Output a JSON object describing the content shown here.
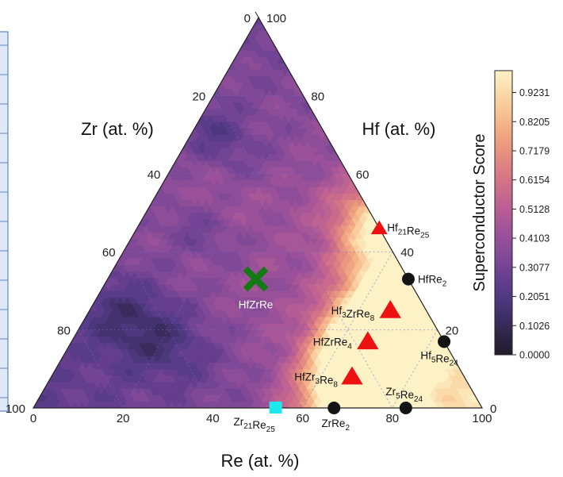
{
  "chart_data": {
    "type": "ternary-contour",
    "axes": {
      "a": {
        "label": "Zr (at. %)",
        "ticks": [
          0,
          20,
          40,
          60,
          80,
          100
        ]
      },
      "b": {
        "label": "Hf (at. %)",
        "ticks": [
          100,
          80,
          60,
          40,
          20,
          0
        ]
      },
      "c": {
        "label": "Re (at. %)",
        "ticks": [
          0,
          20,
          40,
          60,
          80,
          100
        ]
      }
    },
    "colorbar": {
      "label": "Superconductor Score",
      "range": [
        0,
        1
      ],
      "ticks": [
        "0.0000",
        "0.1026",
        "0.2051",
        "0.3077",
        "0.4103",
        "0.5128",
        "0.6154",
        "0.7179",
        "0.8205",
        "0.9231"
      ],
      "colors": [
        "#1f1c2b",
        "#2f2545",
        "#40306a",
        "#533a86",
        "#6b4191",
        "#844a98",
        "#9c5299",
        "#b45c95",
        "#c96a8c",
        "#d97b84",
        "#e8927f",
        "#f2aa82",
        "#f7c494",
        "#fbdcac",
        "#fdf1c6"
      ]
    },
    "markers": [
      {
        "label": "Hf21Re25",
        "hf": 46,
        "zr": 0,
        "re": 54,
        "shape": "triangle",
        "color": "#ee1111"
      },
      {
        "label": "HfRe2",
        "hf": 33,
        "zr": 0,
        "re": 67,
        "shape": "circle",
        "color": "#141414"
      },
      {
        "label": "Hf3ZrRe8",
        "hf": 25,
        "zr": 8,
        "re": 67,
        "shape": "triangle",
        "color": "#ee1111"
      },
      {
        "label": "HfZrRe4",
        "hf": 17,
        "zr": 17,
        "re": 66,
        "shape": "triangle",
        "color": "#ee1111"
      },
      {
        "label": "Hf5Re24",
        "hf": 17,
        "zr": 0,
        "re": 83,
        "shape": "circle",
        "color": "#141414"
      },
      {
        "label": "HfZr3Re8",
        "hf": 8,
        "zr": 25,
        "re": 67,
        "shape": "triangle",
        "color": "#ee1111"
      },
      {
        "label": "Zr5Re24",
        "hf": 0,
        "zr": 17,
        "re": 83,
        "shape": "circle",
        "color": "#141414"
      },
      {
        "label": "ZrRe2",
        "hf": 0,
        "zr": 33,
        "re": 67,
        "shape": "circle",
        "color": "#141414"
      },
      {
        "label": "Zr21Re25",
        "hf": 0,
        "zr": 46,
        "re": 54,
        "shape": "square",
        "color": "#1ee8ec"
      },
      {
        "label": "HfZrRe",
        "hf": 33,
        "zr": 34,
        "re": 33,
        "shape": "cross",
        "color": "#157a15"
      }
    ],
    "grid": true
  }
}
